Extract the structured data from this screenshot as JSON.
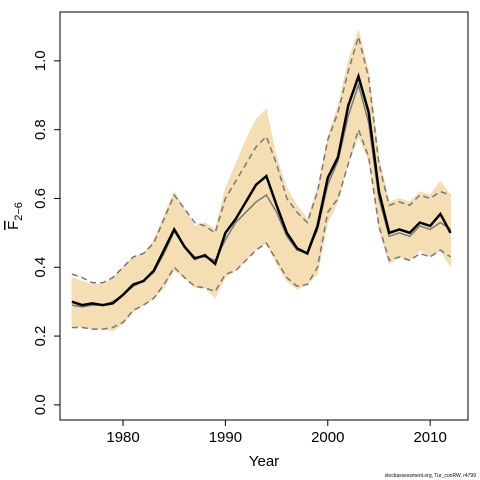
{
  "chart_data": {
    "type": "line",
    "xlabel": "Year",
    "ylabel": {
      "main": "F",
      "sub": "2−6"
    },
    "footnote": "stockassessment.org, Tur_conRW, r4799",
    "x": [
      1975,
      1976,
      1977,
      1978,
      1979,
      1980,
      1981,
      1982,
      1983,
      1984,
      1985,
      1986,
      1987,
      1988,
      1989,
      1990,
      1991,
      1992,
      1993,
      1994,
      1995,
      1996,
      1997,
      1998,
      1999,
      2000,
      2001,
      2002,
      2003,
      2004,
      2005,
      2006,
      2007,
      2008,
      2009,
      2010,
      2011,
      2012
    ],
    "band": {
      "color": "#f5deb3",
      "upper": [
        0.37,
        0.36,
        0.35,
        0.35,
        0.37,
        0.4,
        0.43,
        0.44,
        0.48,
        0.55,
        0.62,
        0.57,
        0.52,
        0.53,
        0.51,
        0.63,
        0.7,
        0.77,
        0.83,
        0.86,
        0.72,
        0.63,
        0.58,
        0.54,
        0.63,
        0.78,
        0.87,
        1.0,
        1.09,
        0.97,
        0.72,
        0.59,
        0.6,
        0.59,
        0.62,
        0.61,
        0.65,
        0.61
      ],
      "lower": [
        0.23,
        0.225,
        0.22,
        0.22,
        0.215,
        0.235,
        0.27,
        0.29,
        0.31,
        0.34,
        0.39,
        0.37,
        0.34,
        0.34,
        0.31,
        0.37,
        0.39,
        0.42,
        0.45,
        0.47,
        0.41,
        0.36,
        0.335,
        0.35,
        0.38,
        0.53,
        0.59,
        0.7,
        0.78,
        0.71,
        0.51,
        0.41,
        0.43,
        0.42,
        0.45,
        0.43,
        0.45,
        0.4
      ]
    },
    "series": [
      {
        "color": "#777777",
        "dash": true,
        "width": 1.5,
        "values": [
          0.38,
          0.37,
          0.355,
          0.355,
          0.37,
          0.4,
          0.43,
          0.44,
          0.47,
          0.54,
          0.61,
          0.57,
          0.53,
          0.52,
          0.5,
          0.6,
          0.65,
          0.7,
          0.75,
          0.78,
          0.7,
          0.6,
          0.56,
          0.53,
          0.62,
          0.77,
          0.85,
          0.97,
          1.07,
          0.95,
          0.7,
          0.58,
          0.59,
          0.58,
          0.61,
          0.6,
          0.62,
          0.61
        ]
      },
      {
        "color": "#777777",
        "dash": true,
        "width": 1.5,
        "values": [
          0.225,
          0.225,
          0.22,
          0.22,
          0.225,
          0.24,
          0.275,
          0.29,
          0.31,
          0.35,
          0.4,
          0.37,
          0.345,
          0.34,
          0.33,
          0.38,
          0.39,
          0.42,
          0.45,
          0.47,
          0.42,
          0.37,
          0.345,
          0.35,
          0.4,
          0.56,
          0.6,
          0.7,
          0.8,
          0.72,
          0.52,
          0.42,
          0.43,
          0.42,
          0.44,
          0.43,
          0.45,
          0.43
        ]
      },
      {
        "color": "#777777",
        "dash": false,
        "width": 1.5,
        "values": [
          0.29,
          0.285,
          0.29,
          0.29,
          0.3,
          0.32,
          0.345,
          0.36,
          0.385,
          0.44,
          0.505,
          0.46,
          0.43,
          0.43,
          0.42,
          0.48,
          0.53,
          0.56,
          0.59,
          0.61,
          0.56,
          0.49,
          0.45,
          0.44,
          0.51,
          0.64,
          0.71,
          0.84,
          0.93,
          0.82,
          0.6,
          0.49,
          0.5,
          0.49,
          0.52,
          0.51,
          0.53,
          0.51
        ]
      },
      {
        "color": "#000000",
        "dash": false,
        "width": 2.5,
        "values": [
          0.3,
          0.29,
          0.295,
          0.29,
          0.295,
          0.32,
          0.35,
          0.36,
          0.39,
          0.45,
          0.51,
          0.46,
          0.425,
          0.435,
          0.41,
          0.5,
          0.54,
          0.59,
          0.64,
          0.665,
          0.58,
          0.5,
          0.455,
          0.44,
          0.52,
          0.66,
          0.72,
          0.87,
          0.955,
          0.85,
          0.62,
          0.5,
          0.51,
          0.5,
          0.53,
          0.52,
          0.555,
          0.5
        ]
      }
    ],
    "xlim": [
      1973.84,
      2013.7
    ],
    "ylim": [
      -0.044,
      1.142
    ],
    "xticks": [
      1980,
      1990,
      2000,
      2010
    ],
    "yticks": [
      {
        "value": 0,
        "label": "0.0"
      },
      0.2,
      0.4,
      0.6,
      0.8,
      {
        "value": 1,
        "label": "1.0"
      }
    ]
  }
}
